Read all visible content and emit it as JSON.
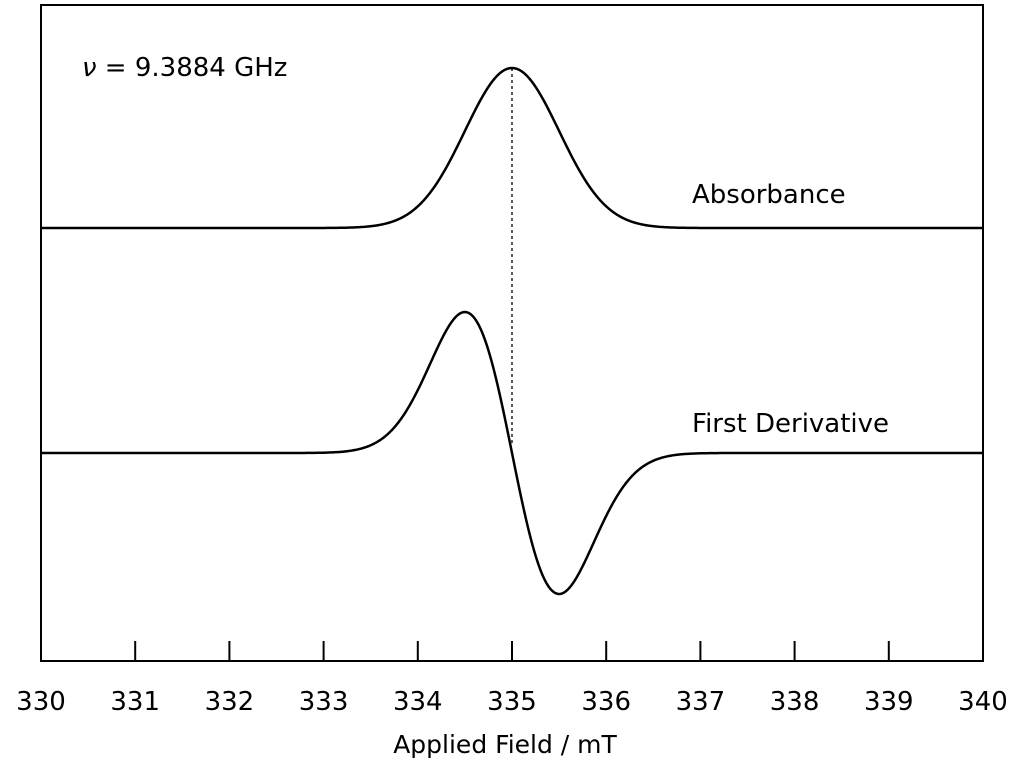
{
  "chart_data": {
    "type": "line",
    "title": "",
    "xlabel": "Applied Field / mT",
    "ylabel": "",
    "xlim": [
      330,
      340
    ],
    "x_ticks": [
      330,
      331,
      332,
      333,
      334,
      335,
      336,
      337,
      338,
      339,
      340
    ],
    "x_tick_labels": [
      "330",
      "331",
      "332",
      "333",
      "334",
      "335",
      "336",
      "337",
      "338",
      "339",
      "340"
    ],
    "grid": false,
    "center_field": 335,
    "half_width_mT": 0.5,
    "annotation": {
      "symbol": "ν",
      "text": " = 9.3884 GHz"
    },
    "series": [
      {
        "name": "Absorbance",
        "label": "Absorbance",
        "shape": "gaussian",
        "baseline": 0,
        "peak_position": 335,
        "peak_amplitude": 1
      },
      {
        "name": "First Derivative",
        "label": "First Derivative",
        "shape": "gaussian-first-derivative",
        "baseline": 0,
        "max_position": 334.5,
        "min_position": 335.5,
        "zero_crossing": 335
      }
    ],
    "marker_line": {
      "x": 335,
      "style": "dotted",
      "from": "absorbance peak",
      "to": "derivative zero crossing"
    }
  },
  "colors": {
    "line": "#000000",
    "background": "#ffffff"
  }
}
